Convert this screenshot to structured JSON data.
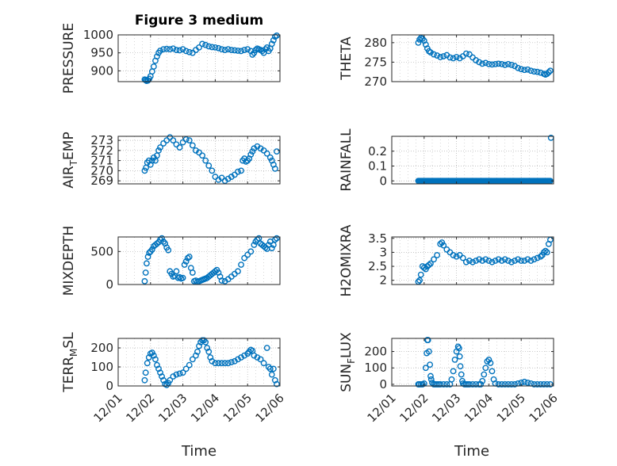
{
  "figure": {
    "title": "Figure 3 medium"
  },
  "colors": {
    "marker": "#0072BD",
    "grid": "#b0b0b0",
    "axis": "#262626"
  },
  "chart_data": [
    {
      "type": "scatter",
      "ylabel": "PRESSURE",
      "xlim": [
        1,
        6
      ],
      "ylim": [
        870,
        1000
      ],
      "yticks": [
        900,
        950,
        1000
      ],
      "grid": true,
      "x": [
        1.82,
        1.85,
        1.88,
        1.92,
        1.96,
        2.0,
        2.05,
        2.1,
        2.15,
        2.2,
        2.25,
        2.3,
        2.4,
        2.5,
        2.6,
        2.7,
        2.8,
        2.9,
        3.0,
        3.1,
        3.2,
        3.3,
        3.4,
        3.5,
        3.6,
        3.7,
        3.8,
        3.9,
        4.0,
        4.1,
        4.2,
        4.3,
        4.4,
        4.5,
        4.6,
        4.7,
        4.8,
        4.9,
        5.0,
        5.1,
        5.15,
        5.2,
        5.25,
        5.3,
        5.35,
        5.4,
        5.45,
        5.5,
        5.55,
        5.6,
        5.65,
        5.7,
        5.75,
        5.8,
        5.85,
        5.9
      ],
      "y": [
        876,
        874,
        872,
        873,
        878,
        885,
        898,
        912,
        928,
        940,
        950,
        956,
        960,
        961,
        960,
        962,
        958,
        957,
        960,
        955,
        952,
        950,
        958,
        965,
        975,
        972,
        968,
        966,
        965,
        963,
        960,
        958,
        960,
        958,
        957,
        956,
        955,
        958,
        960,
        955,
        945,
        950,
        958,
        962,
        960,
        958,
        955,
        950,
        960,
        965,
        955,
        962,
        975,
        985,
        995,
        998
      ]
    },
    {
      "type": "scatter",
      "ylabel": "THETA",
      "xlim": [
        1,
        6
      ],
      "ylim": [
        270,
        282
      ],
      "yticks": [
        270,
        275,
        280
      ],
      "grid": true,
      "x": [
        1.82,
        1.86,
        1.9,
        1.95,
        2.0,
        2.05,
        2.1,
        2.15,
        2.2,
        2.3,
        2.4,
        2.5,
        2.6,
        2.7,
        2.8,
        2.9,
        3.0,
        3.1,
        3.2,
        3.3,
        3.4,
        3.5,
        3.6,
        3.7,
        3.8,
        3.9,
        4.0,
        4.1,
        4.2,
        4.3,
        4.4,
        4.5,
        4.6,
        4.7,
        4.8,
        4.9,
        5.0,
        5.1,
        5.2,
        5.3,
        5.4,
        5.5,
        5.6,
        5.7,
        5.75,
        5.8,
        5.85,
        5.9
      ],
      "y": [
        280.0,
        280.8,
        281.2,
        281.0,
        280.5,
        279.5,
        278.5,
        277.8,
        277.5,
        277.0,
        276.7,
        276.3,
        276.5,
        276.8,
        276.2,
        276.0,
        276.3,
        276.0,
        276.5,
        277.2,
        277.0,
        276.2,
        275.5,
        275.0,
        274.6,
        274.8,
        274.5,
        274.4,
        274.5,
        274.6,
        274.5,
        274.3,
        274.5,
        274.3,
        274.0,
        273.5,
        273.2,
        273.0,
        273.1,
        272.8,
        272.6,
        272.5,
        272.3,
        272.0,
        271.8,
        272.0,
        272.4,
        272.8
      ]
    },
    {
      "type": "scatter",
      "ylabel": "AIR_TEMP",
      "xlim": [
        1,
        6
      ],
      "ylim": [
        268.7,
        273.4
      ],
      "yticks": [
        269,
        270,
        271,
        272,
        273
      ],
      "grid": true,
      "x": [
        1.82,
        1.86,
        1.9,
        1.95,
        2.0,
        2.05,
        2.1,
        2.15,
        2.2,
        2.25,
        2.3,
        2.4,
        2.5,
        2.6,
        2.7,
        2.8,
        2.9,
        3.0,
        3.1,
        3.2,
        3.3,
        3.4,
        3.5,
        3.6,
        3.7,
        3.8,
        3.9,
        4.0,
        4.1,
        4.2,
        4.3,
        4.4,
        4.5,
        4.6,
        4.7,
        4.8,
        4.85,
        4.9,
        4.95,
        5.0,
        5.05,
        5.1,
        5.15,
        5.2,
        5.3,
        5.4,
        5.5,
        5.6,
        5.7,
        5.75,
        5.8,
        5.85,
        5.9
      ],
      "y": [
        270.0,
        270.3,
        270.8,
        271.0,
        270.6,
        271.0,
        271.3,
        271.0,
        271.5,
        272.0,
        272.3,
        272.7,
        273.0,
        273.3,
        273.0,
        272.6,
        272.3,
        272.8,
        273.1,
        273.0,
        272.5,
        272.0,
        271.8,
        271.5,
        271.0,
        270.5,
        270.0,
        269.4,
        269.1,
        269.3,
        269.0,
        269.2,
        269.4,
        269.6,
        269.9,
        270.0,
        271.0,
        271.2,
        270.9,
        271.0,
        271.2,
        271.6,
        271.9,
        272.2,
        272.4,
        272.2,
        272.0,
        271.7,
        271.3,
        271.0,
        270.6,
        270.2,
        271.9
      ]
    },
    {
      "type": "scatter",
      "ylabel": "RAINFALL",
      "xlim": [
        1,
        6
      ],
      "ylim": [
        -0.02,
        0.3
      ],
      "yticks": [
        0,
        0.1,
        0.2
      ],
      "grid": true,
      "x_range_zero": [
        1.82,
        5.9
      ],
      "zero_count": 140,
      "x_extra": [
        5.92
      ],
      "y_extra": [
        0.29
      ]
    },
    {
      "type": "scatter",
      "ylabel": "MIXDEPTH",
      "xlim": [
        1,
        6
      ],
      "ylim": [
        0,
        720
      ],
      "yticks": [
        0,
        500
      ],
      "grid": true,
      "x": [
        1.82,
        1.85,
        1.88,
        1.92,
        1.96,
        2.0,
        2.05,
        2.1,
        2.15,
        2.2,
        2.25,
        2.3,
        2.35,
        2.4,
        2.45,
        2.5,
        2.55,
        2.6,
        2.65,
        2.7,
        2.75,
        2.8,
        2.85,
        2.9,
        2.95,
        3.0,
        3.05,
        3.1,
        3.15,
        3.2,
        3.25,
        3.3,
        3.35,
        3.4,
        3.45,
        3.5,
        3.55,
        3.6,
        3.65,
        3.7,
        3.75,
        3.8,
        3.85,
        3.9,
        3.95,
        4.0,
        4.05,
        4.1,
        4.15,
        4.2,
        4.3,
        4.4,
        4.5,
        4.6,
        4.7,
        4.8,
        4.9,
        5.0,
        5.1,
        5.2,
        5.25,
        5.3,
        5.35,
        5.4,
        5.45,
        5.5,
        5.55,
        5.6,
        5.65,
        5.7,
        5.75,
        5.8,
        5.85,
        5.9
      ],
      "y": [
        50,
        180,
        320,
        420,
        480,
        500,
        530,
        580,
        600,
        620,
        640,
        680,
        700,
        650,
        620,
        560,
        520,
        200,
        160,
        120,
        130,
        200,
        100,
        110,
        90,
        100,
        300,
        350,
        400,
        420,
        250,
        180,
        50,
        60,
        40,
        50,
        60,
        70,
        80,
        90,
        100,
        120,
        140,
        160,
        180,
        200,
        220,
        180,
        120,
        60,
        50,
        80,
        120,
        160,
        200,
        300,
        400,
        450,
        500,
        600,
        650,
        680,
        700,
        620,
        600,
        580,
        560,
        540,
        600,
        650,
        550,
        600,
        680,
        700
      ]
    },
    {
      "type": "scatter",
      "ylabel": "H2OMIXRA",
      "xlim": [
        1,
        6
      ],
      "ylim": [
        1.85,
        3.55
      ],
      "yticks": [
        2,
        2.5,
        3,
        3.5
      ],
      "grid": true,
      "x": [
        1.82,
        1.86,
        1.9,
        1.95,
        2.0,
        2.05,
        2.1,
        2.15,
        2.2,
        2.3,
        2.4,
        2.5,
        2.55,
        2.6,
        2.7,
        2.8,
        2.9,
        3.0,
        3.1,
        3.2,
        3.3,
        3.4,
        3.5,
        3.6,
        3.7,
        3.8,
        3.9,
        4.0,
        4.1,
        4.2,
        4.3,
        4.4,
        4.5,
        4.6,
        4.7,
        4.8,
        4.9,
        5.0,
        5.1,
        5.2,
        5.3,
        5.4,
        5.5,
        5.6,
        5.65,
        5.7,
        5.75,
        5.8,
        5.85,
        5.9
      ],
      "y": [
        1.95,
        2.0,
        2.2,
        2.5,
        2.45,
        2.4,
        2.5,
        2.55,
        2.6,
        2.75,
        2.9,
        3.3,
        3.35,
        3.25,
        3.1,
        3.0,
        2.9,
        2.85,
        2.9,
        2.8,
        2.65,
        2.7,
        2.65,
        2.7,
        2.75,
        2.7,
        2.75,
        2.7,
        2.65,
        2.7,
        2.75,
        2.7,
        2.75,
        2.7,
        2.65,
        2.7,
        2.75,
        2.7,
        2.7,
        2.75,
        2.7,
        2.75,
        2.8,
        2.85,
        2.9,
        3.0,
        3.05,
        3.0,
        3.3,
        3.45
      ]
    },
    {
      "type": "scatter",
      "ylabel": "TERR_MSL",
      "xlim": [
        1,
        6
      ],
      "ylim": [
        0,
        250
      ],
      "yticks": [
        0,
        100,
        200
      ],
      "grid": true,
      "x": [
        1.82,
        1.85,
        1.9,
        1.95,
        2.0,
        2.05,
        2.1,
        2.15,
        2.2,
        2.25,
        2.3,
        2.35,
        2.4,
        2.45,
        2.5,
        2.55,
        2.6,
        2.7,
        2.8,
        2.9,
        3.0,
        3.1,
        3.2,
        3.3,
        3.4,
        3.45,
        3.5,
        3.55,
        3.6,
        3.65,
        3.7,
        3.75,
        3.8,
        3.85,
        3.9,
        4.0,
        4.1,
        4.2,
        4.3,
        4.4,
        4.5,
        4.6,
        4.7,
        4.8,
        4.9,
        5.0,
        5.05,
        5.1,
        5.15,
        5.2,
        5.3,
        5.4,
        5.5,
        5.6,
        5.65,
        5.7,
        5.75,
        5.8,
        5.85,
        5.9
      ],
      "y": [
        30,
        70,
        120,
        150,
        170,
        175,
        160,
        140,
        110,
        90,
        70,
        50,
        30,
        10,
        5,
        15,
        30,
        50,
        60,
        65,
        70,
        90,
        110,
        140,
        160,
        180,
        210,
        230,
        240,
        240,
        230,
        200,
        180,
        150,
        130,
        120,
        120,
        120,
        120,
        120,
        125,
        130,
        140,
        150,
        160,
        170,
        180,
        190,
        185,
        160,
        150,
        140,
        120,
        200,
        100,
        90,
        60,
        90,
        30,
        10
      ]
    },
    {
      "type": "scatter",
      "ylabel": "SUN_FLUX",
      "xlim": [
        1,
        6
      ],
      "ylim": [
        -10,
        280
      ],
      "yticks": [
        0,
        100,
        200
      ],
      "grid": true,
      "x": [
        1.82,
        1.85,
        1.9,
        1.95,
        2.0,
        2.05,
        2.08,
        2.1,
        2.12,
        2.15,
        2.18,
        2.2,
        2.22,
        2.25,
        2.3,
        2.35,
        2.4,
        2.45,
        2.5,
        2.6,
        2.7,
        2.8,
        2.85,
        2.9,
        2.95,
        3.0,
        3.05,
        3.08,
        3.1,
        3.12,
        3.15,
        3.18,
        3.2,
        3.25,
        3.3,
        3.35,
        3.4,
        3.5,
        3.6,
        3.7,
        3.75,
        3.8,
        3.85,
        3.9,
        3.95,
        4.0,
        4.05,
        4.1,
        4.15,
        4.2,
        4.3,
        4.4,
        4.5,
        4.6,
        4.7,
        4.8,
        4.9,
        5.0,
        5.1,
        5.2,
        5.3,
        5.4,
        5.5,
        5.6,
        5.7,
        5.8,
        5.9
      ],
      "y": [
        0,
        0,
        0,
        0,
        5,
        100,
        190,
        270,
        270,
        200,
        120,
        50,
        30,
        10,
        0,
        0,
        0,
        0,
        0,
        0,
        0,
        0,
        30,
        80,
        150,
        200,
        230,
        220,
        170,
        110,
        60,
        20,
        5,
        0,
        0,
        0,
        0,
        0,
        0,
        0,
        0,
        20,
        60,
        100,
        140,
        150,
        130,
        80,
        30,
        5,
        0,
        0,
        0,
        0,
        0,
        0,
        5,
        10,
        15,
        10,
        5,
        0,
        0,
        0,
        0,
        0,
        0
      ]
    }
  ],
  "panels": [
    {
      "ylabel_main": "PRESSURE",
      "ylabel_sub": "",
      "ylabel_rest": ""
    },
    {
      "ylabel_main": "THETA",
      "ylabel_sub": "",
      "ylabel_rest": ""
    },
    {
      "ylabel_main": "AIR",
      "ylabel_sub": "T",
      "ylabel_rest": "EMP"
    },
    {
      "ylabel_main": "RAINFALL",
      "ylabel_sub": "",
      "ylabel_rest": ""
    },
    {
      "ylabel_main": "MIXDEPTH",
      "ylabel_sub": "",
      "ylabel_rest": ""
    },
    {
      "ylabel_main": "H2OMIXRA",
      "ylabel_sub": "",
      "ylabel_rest": ""
    },
    {
      "ylabel_main": "TERR",
      "ylabel_sub": "M",
      "ylabel_rest": "SL"
    },
    {
      "ylabel_main": "SUN",
      "ylabel_sub": "F",
      "ylabel_rest": "LUX"
    }
  ],
  "xaxis": {
    "label": "Time",
    "ticks": [
      1,
      2,
      3,
      4,
      5,
      6
    ],
    "tick_labels": [
      "12/01",
      "12/02",
      "12/03",
      "12/04",
      "12/05",
      "12/06"
    ]
  }
}
